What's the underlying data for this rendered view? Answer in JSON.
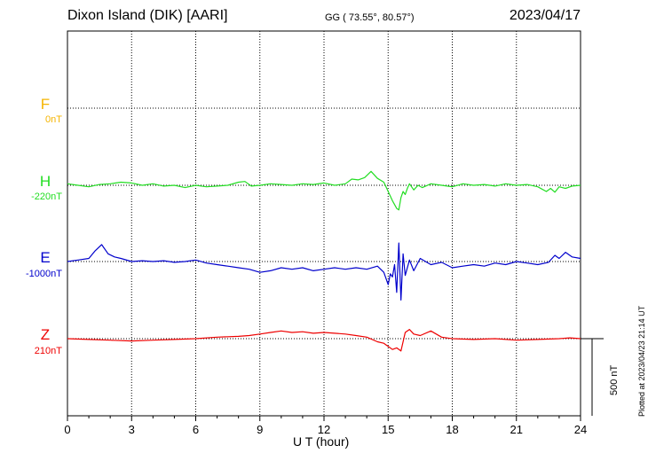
{
  "header": {
    "station": "Dixon Island (DIK)  [AARI]",
    "coords": "GG ( 73.55°,  80.57°)",
    "date": "2023/04/17"
  },
  "side_note": "Plotted at 2023/04/23 21:14 UT",
  "chart_data": {
    "type": "line",
    "title": "Dixon Island (DIK)  [AARI]",
    "xlabel": "U T (hour)",
    "xlim": [
      0,
      24
    ],
    "xticks": [
      "0",
      "3",
      "6",
      "9",
      "12",
      "15",
      "18",
      "21",
      "24"
    ],
    "scale_bar": "500 nT",
    "grid": true,
    "colors": {
      "F": "#f5b400",
      "H": "#22dd22",
      "E": "#0000cc",
      "Z": "#ee0000"
    },
    "components": [
      {
        "name": "F",
        "offset_label": "0nT",
        "x": [],
        "y": []
      },
      {
        "name": "H",
        "offset_label": "-220nT",
        "x": [
          0,
          0.5,
          1,
          1.5,
          2,
          2.5,
          3,
          3.5,
          4,
          4.5,
          5,
          5.5,
          6,
          6.5,
          7,
          7.5,
          8,
          8.3,
          8.6,
          9,
          9.5,
          10,
          10.5,
          11,
          11.5,
          12,
          12.5,
          13,
          13.3,
          13.6,
          13.9,
          14.2,
          14.5,
          14.8,
          15,
          15.2,
          15.4,
          15.5,
          15.6,
          15.7,
          15.8,
          15.9,
          16,
          16.2,
          16.4,
          16.6,
          17,
          17.5,
          18,
          18.5,
          19,
          19.5,
          20,
          20.5,
          21,
          21.5,
          22,
          22.4,
          22.6,
          22.8,
          23,
          23.3,
          23.6,
          24
        ],
        "y": [
          10,
          0,
          -10,
          5,
          10,
          20,
          15,
          0,
          10,
          -5,
          0,
          -15,
          0,
          -10,
          -5,
          0,
          20,
          25,
          -5,
          0,
          10,
          5,
          0,
          10,
          5,
          15,
          0,
          10,
          40,
          35,
          50,
          90,
          45,
          20,
          -40,
          -100,
          -150,
          -160,
          -80,
          -40,
          -60,
          -20,
          10,
          -30,
          0,
          -15,
          10,
          0,
          -10,
          10,
          0,
          5,
          -5,
          10,
          0,
          5,
          -10,
          -40,
          -20,
          -45,
          -10,
          -20,
          -5,
          0
        ]
      },
      {
        "name": "E",
        "offset_label": "-1000nT",
        "x": [
          0,
          0.5,
          1,
          1.3,
          1.6,
          1.9,
          2.2,
          2.5,
          3,
          3.5,
          4,
          4.5,
          5,
          5.5,
          6,
          6.5,
          7,
          7.5,
          8,
          8.5,
          9,
          9.5,
          10,
          10.5,
          11,
          11.5,
          12,
          12.5,
          13,
          13.5,
          14,
          14.5,
          14.8,
          15,
          15.1,
          15.2,
          15.3,
          15.4,
          15.5,
          15.6,
          15.7,
          15.8,
          16,
          16.2,
          16.5,
          17,
          17.5,
          18,
          18.5,
          19,
          19.5,
          20,
          20.5,
          21,
          21.5,
          22,
          22.5,
          22.8,
          23,
          23.3,
          23.6,
          24
        ],
        "y": [
          0,
          10,
          20,
          70,
          110,
          50,
          30,
          20,
          0,
          5,
          0,
          5,
          -5,
          0,
          10,
          -10,
          -20,
          -30,
          -40,
          -50,
          -70,
          -60,
          -40,
          -50,
          -40,
          -60,
          -50,
          -40,
          -50,
          -40,
          -50,
          -30,
          -70,
          -150,
          -80,
          -100,
          -20,
          -200,
          120,
          -250,
          50,
          -90,
          10,
          -60,
          20,
          -20,
          -5,
          -40,
          -30,
          -20,
          -30,
          -10,
          -20,
          0,
          -10,
          -20,
          -5,
          40,
          20,
          60,
          30,
          20
        ]
      },
      {
        "name": "Z",
        "offset_label": "210nT",
        "x": [
          0,
          1,
          2,
          3,
          4,
          5,
          6,
          7,
          8,
          8.5,
          9,
          9.5,
          10,
          10.5,
          11,
          11.5,
          12,
          12.5,
          13,
          13.5,
          14,
          14.5,
          14.8,
          15,
          15.2,
          15.4,
          15.6,
          15.8,
          16,
          16.2,
          16.5,
          17,
          17.5,
          18,
          19,
          20,
          21,
          22,
          23,
          23.5,
          24
        ],
        "y": [
          0,
          -5,
          -10,
          -15,
          -10,
          -5,
          0,
          10,
          15,
          20,
          30,
          40,
          50,
          40,
          45,
          35,
          40,
          35,
          30,
          20,
          10,
          -20,
          -30,
          -50,
          -70,
          -60,
          -80,
          40,
          60,
          30,
          20,
          50,
          10,
          0,
          -5,
          0,
          -10,
          -5,
          0,
          5,
          0
        ]
      }
    ]
  }
}
